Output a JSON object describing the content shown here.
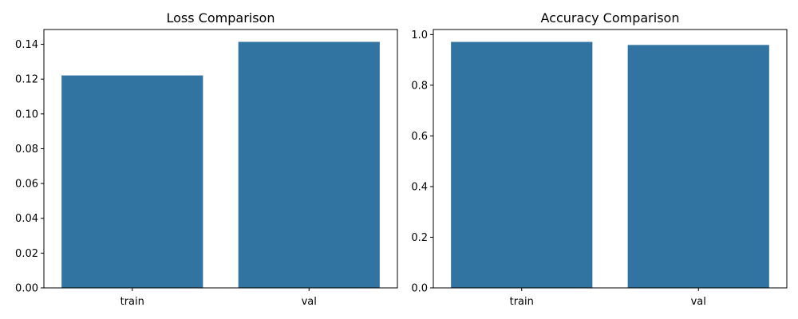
{
  "figure": {
    "background": "#ffffff",
    "bar_color": "#3274a1"
  },
  "chart_data": [
    {
      "type": "bar",
      "title": "Loss Comparison",
      "categories": [
        "train",
        "val"
      ],
      "values": [
        0.1221,
        0.1414
      ],
      "xlabel": "",
      "ylabel": "",
      "ylim": [
        0,
        0.1485
      ],
      "yticks": [
        0.0,
        0.02,
        0.04,
        0.06,
        0.08,
        0.1,
        0.12,
        0.14
      ],
      "ytick_labels": [
        "0.00",
        "0.02",
        "0.04",
        "0.06",
        "0.08",
        "0.10",
        "0.12",
        "0.14"
      ],
      "grid": false,
      "legend": "none"
    },
    {
      "type": "bar",
      "title": "Accuracy Comparison",
      "categories": [
        "train",
        "val"
      ],
      "values": [
        0.971,
        0.959
      ],
      "xlabel": "",
      "ylabel": "",
      "ylim": [
        0,
        1.02
      ],
      "yticks": [
        0.0,
        0.2,
        0.4,
        0.6,
        0.8,
        1.0
      ],
      "ytick_labels": [
        "0.0",
        "0.2",
        "0.4",
        "0.6",
        "0.8",
        "1.0"
      ],
      "grid": false,
      "legend": "none"
    }
  ]
}
